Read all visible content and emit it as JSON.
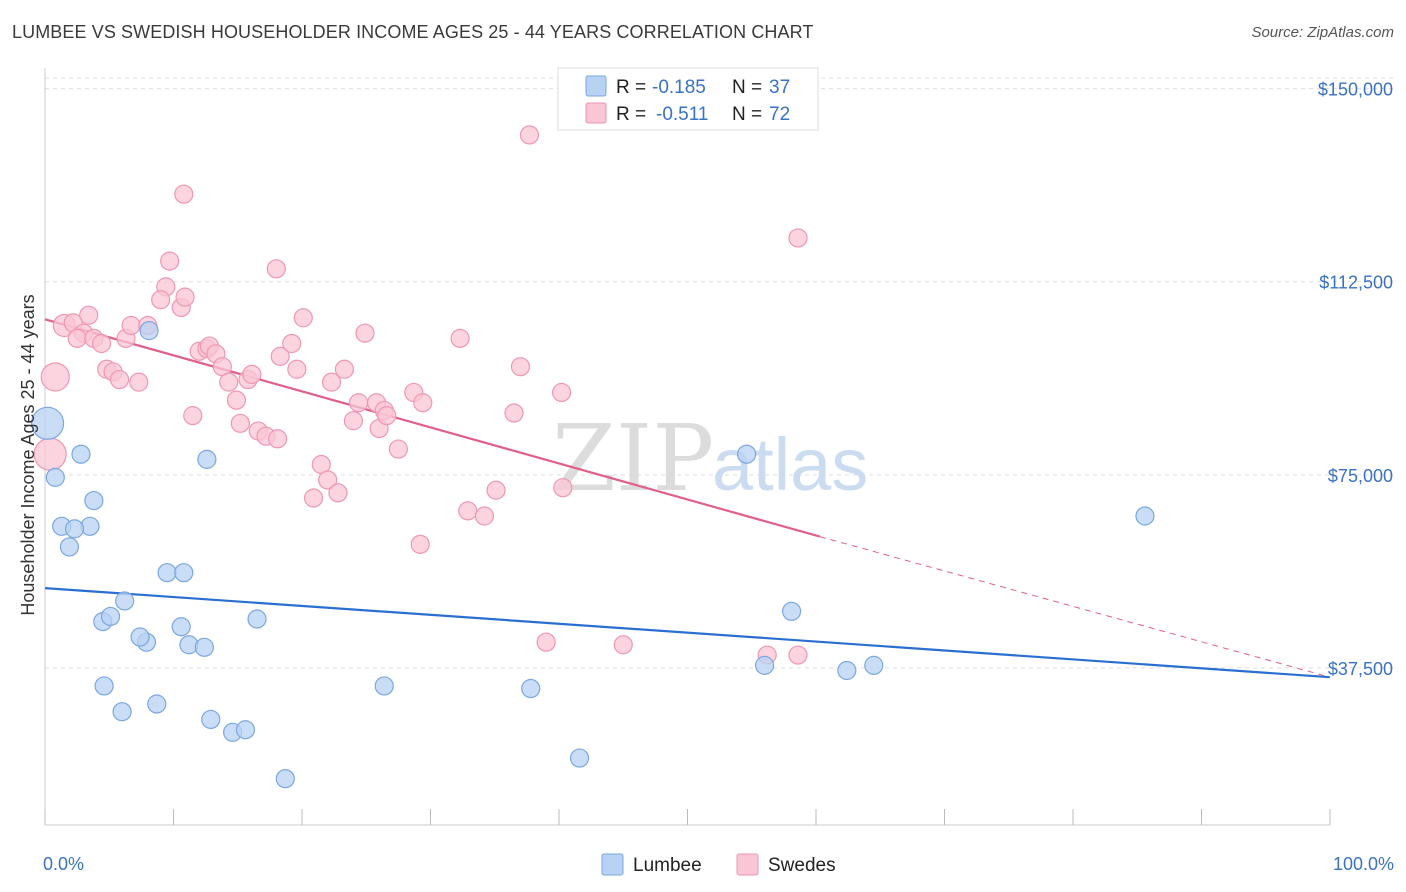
{
  "header": {
    "title": "LUMBEE VS SWEDISH HOUSEHOLDER INCOME AGES 25 - 44 YEARS CORRELATION CHART",
    "source": "Source: ZipAtlas.com"
  },
  "watermark": {
    "zip": "ZIP",
    "atlas": "atlas"
  },
  "legend": {
    "lumbee": {
      "r_label": "R =",
      "r_value": "-0.185",
      "n_label": "N =",
      "n_value": "37"
    },
    "swedes": {
      "r_label": "R =",
      "r_value": "-0.511",
      "n_label": "N =",
      "n_value": "72"
    }
  },
  "bottom_legend": {
    "lumbee": "Lumbee",
    "swedes": "Swedes"
  },
  "colors": {
    "lumbee_fill": "#b8d2f3",
    "lumbee_stroke": "#7aa7e0",
    "lumbee_line": "#2a6fd0",
    "swedes_fill": "#f9c6d6",
    "swedes_stroke": "#ee97b3",
    "swedes_line": "#e0608c",
    "tick_label": "#3a72c4",
    "grid": "#dddddd"
  },
  "chart_data": {
    "type": "scatter",
    "title": "LUMBEE VS SWEDISH HOUSEHOLDER INCOME AGES 25 - 44 YEARS CORRELATION CHART",
    "xlabel": "",
    "ylabel": "Householder Income Ages 25 - 44 years",
    "xlim": [
      0,
      100
    ],
    "ylim": [
      7000,
      154000
    ],
    "x_tick_labels": [
      "0.0%",
      "100.0%"
    ],
    "y_ticks": [
      37500,
      75000,
      112500,
      150000
    ],
    "y_tick_labels": [
      "$37,500",
      "$75,000",
      "$112,500",
      "$150,000"
    ],
    "grid": true,
    "legend_position": "top-center",
    "series": [
      {
        "name": "Lumbee",
        "points": [
          [
            0.2,
            85000,
            16
          ],
          [
            0.8,
            74500,
            9
          ],
          [
            2.8,
            79000,
            9
          ],
          [
            1.3,
            65000,
            9
          ],
          [
            3.5,
            65000,
            9
          ],
          [
            2.3,
            64500,
            9
          ],
          [
            1.9,
            61000,
            9
          ],
          [
            3.8,
            70000,
            9
          ],
          [
            9.5,
            56000,
            9
          ],
          [
            10.8,
            56000,
            9
          ],
          [
            6.2,
            50500,
            9
          ],
          [
            4.5,
            46500,
            9
          ],
          [
            5.1,
            47500,
            9
          ],
          [
            7.9,
            42500,
            9
          ],
          [
            7.4,
            43500,
            9
          ],
          [
            10.6,
            45500,
            9
          ],
          [
            16.5,
            47000,
            9
          ],
          [
            11.2,
            42000,
            9
          ],
          [
            12.4,
            41500,
            9
          ],
          [
            4.6,
            34000,
            9
          ],
          [
            6.0,
            29000,
            9
          ],
          [
            8.7,
            30500,
            9
          ],
          [
            12.9,
            27500,
            9
          ],
          [
            14.6,
            25000,
            9
          ],
          [
            15.6,
            25500,
            9
          ],
          [
            18.7,
            16000,
            9
          ],
          [
            26.4,
            34000,
            9
          ],
          [
            37.8,
            33500,
            9
          ],
          [
            41.6,
            20000,
            9
          ],
          [
            54.6,
            79000,
            9
          ],
          [
            58.1,
            48500,
            9
          ],
          [
            56.0,
            38000,
            9
          ],
          [
            62.4,
            37000,
            9
          ],
          [
            64.5,
            38000,
            9
          ],
          [
            85.6,
            67000,
            9
          ],
          [
            8.1,
            103000,
            9
          ],
          [
            12.6,
            78000,
            9
          ]
        ],
        "trend": {
          "x": [
            0,
            100
          ],
          "y": [
            53000,
            35700
          ]
        }
      },
      {
        "name": "Swedes",
        "points": [
          [
            0.8,
            94000,
            14
          ],
          [
            0.4,
            79000,
            16
          ],
          [
            1.5,
            104000,
            11
          ],
          [
            3.4,
            106000,
            9
          ],
          [
            2.2,
            104500,
            9
          ],
          [
            3.0,
            102500,
            9
          ],
          [
            2.5,
            101500,
            9
          ],
          [
            3.8,
            101500,
            9
          ],
          [
            4.4,
            100500,
            9
          ],
          [
            6.3,
            101500,
            9
          ],
          [
            4.8,
            95500,
            9
          ],
          [
            5.3,
            95000,
            9
          ],
          [
            5.8,
            93500,
            9
          ],
          [
            7.3,
            93000,
            9
          ],
          [
            6.7,
            104000,
            9
          ],
          [
            8.0,
            104000,
            9
          ],
          [
            9.4,
            111500,
            9
          ],
          [
            9.0,
            109000,
            9
          ],
          [
            9.7,
            116500,
            9
          ],
          [
            10.6,
            107500,
            9
          ],
          [
            10.9,
            109500,
            9
          ],
          [
            10.8,
            129500,
            9
          ],
          [
            11.5,
            86500,
            9
          ],
          [
            12.0,
            99000,
            9
          ],
          [
            12.6,
            99500,
            9
          ],
          [
            12.8,
            100000,
            9
          ],
          [
            13.3,
            98500,
            9
          ],
          [
            13.8,
            96000,
            9
          ],
          [
            14.3,
            93000,
            9
          ],
          [
            14.9,
            89500,
            9
          ],
          [
            15.2,
            85000,
            9
          ],
          [
            15.8,
            93500,
            9
          ],
          [
            16.1,
            94500,
            9
          ],
          [
            16.6,
            83500,
            9
          ],
          [
            17.2,
            82500,
            9
          ],
          [
            18.1,
            82000,
            9
          ],
          [
            18.3,
            98000,
            9
          ],
          [
            18.0,
            115000,
            9
          ],
          [
            19.2,
            100500,
            9
          ],
          [
            19.6,
            95500,
            9
          ],
          [
            20.1,
            105500,
            9
          ],
          [
            20.9,
            70500,
            9
          ],
          [
            21.5,
            77000,
            9
          ],
          [
            22.0,
            74000,
            9
          ],
          [
            22.3,
            93000,
            9
          ],
          [
            22.8,
            71500,
            9
          ],
          [
            23.3,
            95500,
            9
          ],
          [
            24.0,
            85500,
            9
          ],
          [
            24.4,
            89000,
            9
          ],
          [
            24.9,
            102500,
            9
          ],
          [
            25.8,
            89000,
            9
          ],
          [
            26.0,
            84000,
            9
          ],
          [
            26.4,
            87500,
            9
          ],
          [
            26.6,
            86500,
            9
          ],
          [
            27.5,
            80000,
            9
          ],
          [
            28.7,
            91000,
            9
          ],
          [
            29.4,
            89000,
            9
          ],
          [
            29.2,
            61500,
            9
          ],
          [
            32.3,
            101500,
            9
          ],
          [
            32.9,
            68000,
            9
          ],
          [
            34.2,
            67000,
            9
          ],
          [
            35.1,
            72000,
            9
          ],
          [
            36.5,
            87000,
            9
          ],
          [
            37.0,
            96000,
            9
          ],
          [
            37.7,
            141000,
            9
          ],
          [
            39.0,
            42500,
            9
          ],
          [
            40.2,
            91000,
            9
          ],
          [
            40.3,
            72500,
            9
          ],
          [
            45.0,
            42000,
            9
          ],
          [
            56.2,
            40000,
            9
          ],
          [
            58.6,
            121000,
            9
          ],
          [
            58.6,
            40000,
            9
          ]
        ],
        "trend": {
          "x": [
            0,
            60.3
          ],
          "y": [
            105200,
            63000
          ]
        },
        "trend_extension": {
          "x": [
            60.3,
            100
          ],
          "y": [
            63000,
            35700
          ]
        }
      }
    ]
  }
}
